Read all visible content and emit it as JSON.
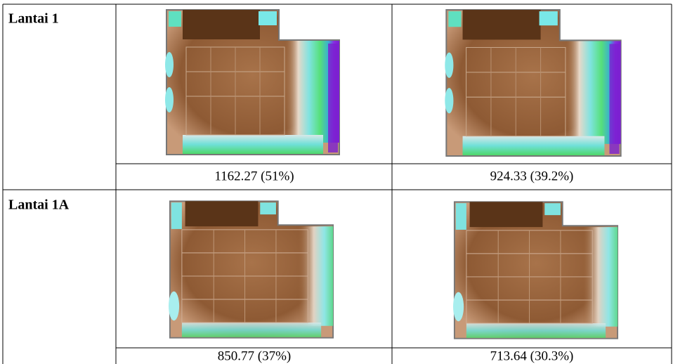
{
  "table": {
    "rows": [
      {
        "label": "Lantai 1",
        "values": [
          "1162.27 (51%)",
          "924.33 (39.2%)"
        ]
      },
      {
        "label": "Lantai 1A",
        "values": [
          "850.77 (37%)",
          "713.64 (30.3%)"
        ]
      }
    ]
  }
}
